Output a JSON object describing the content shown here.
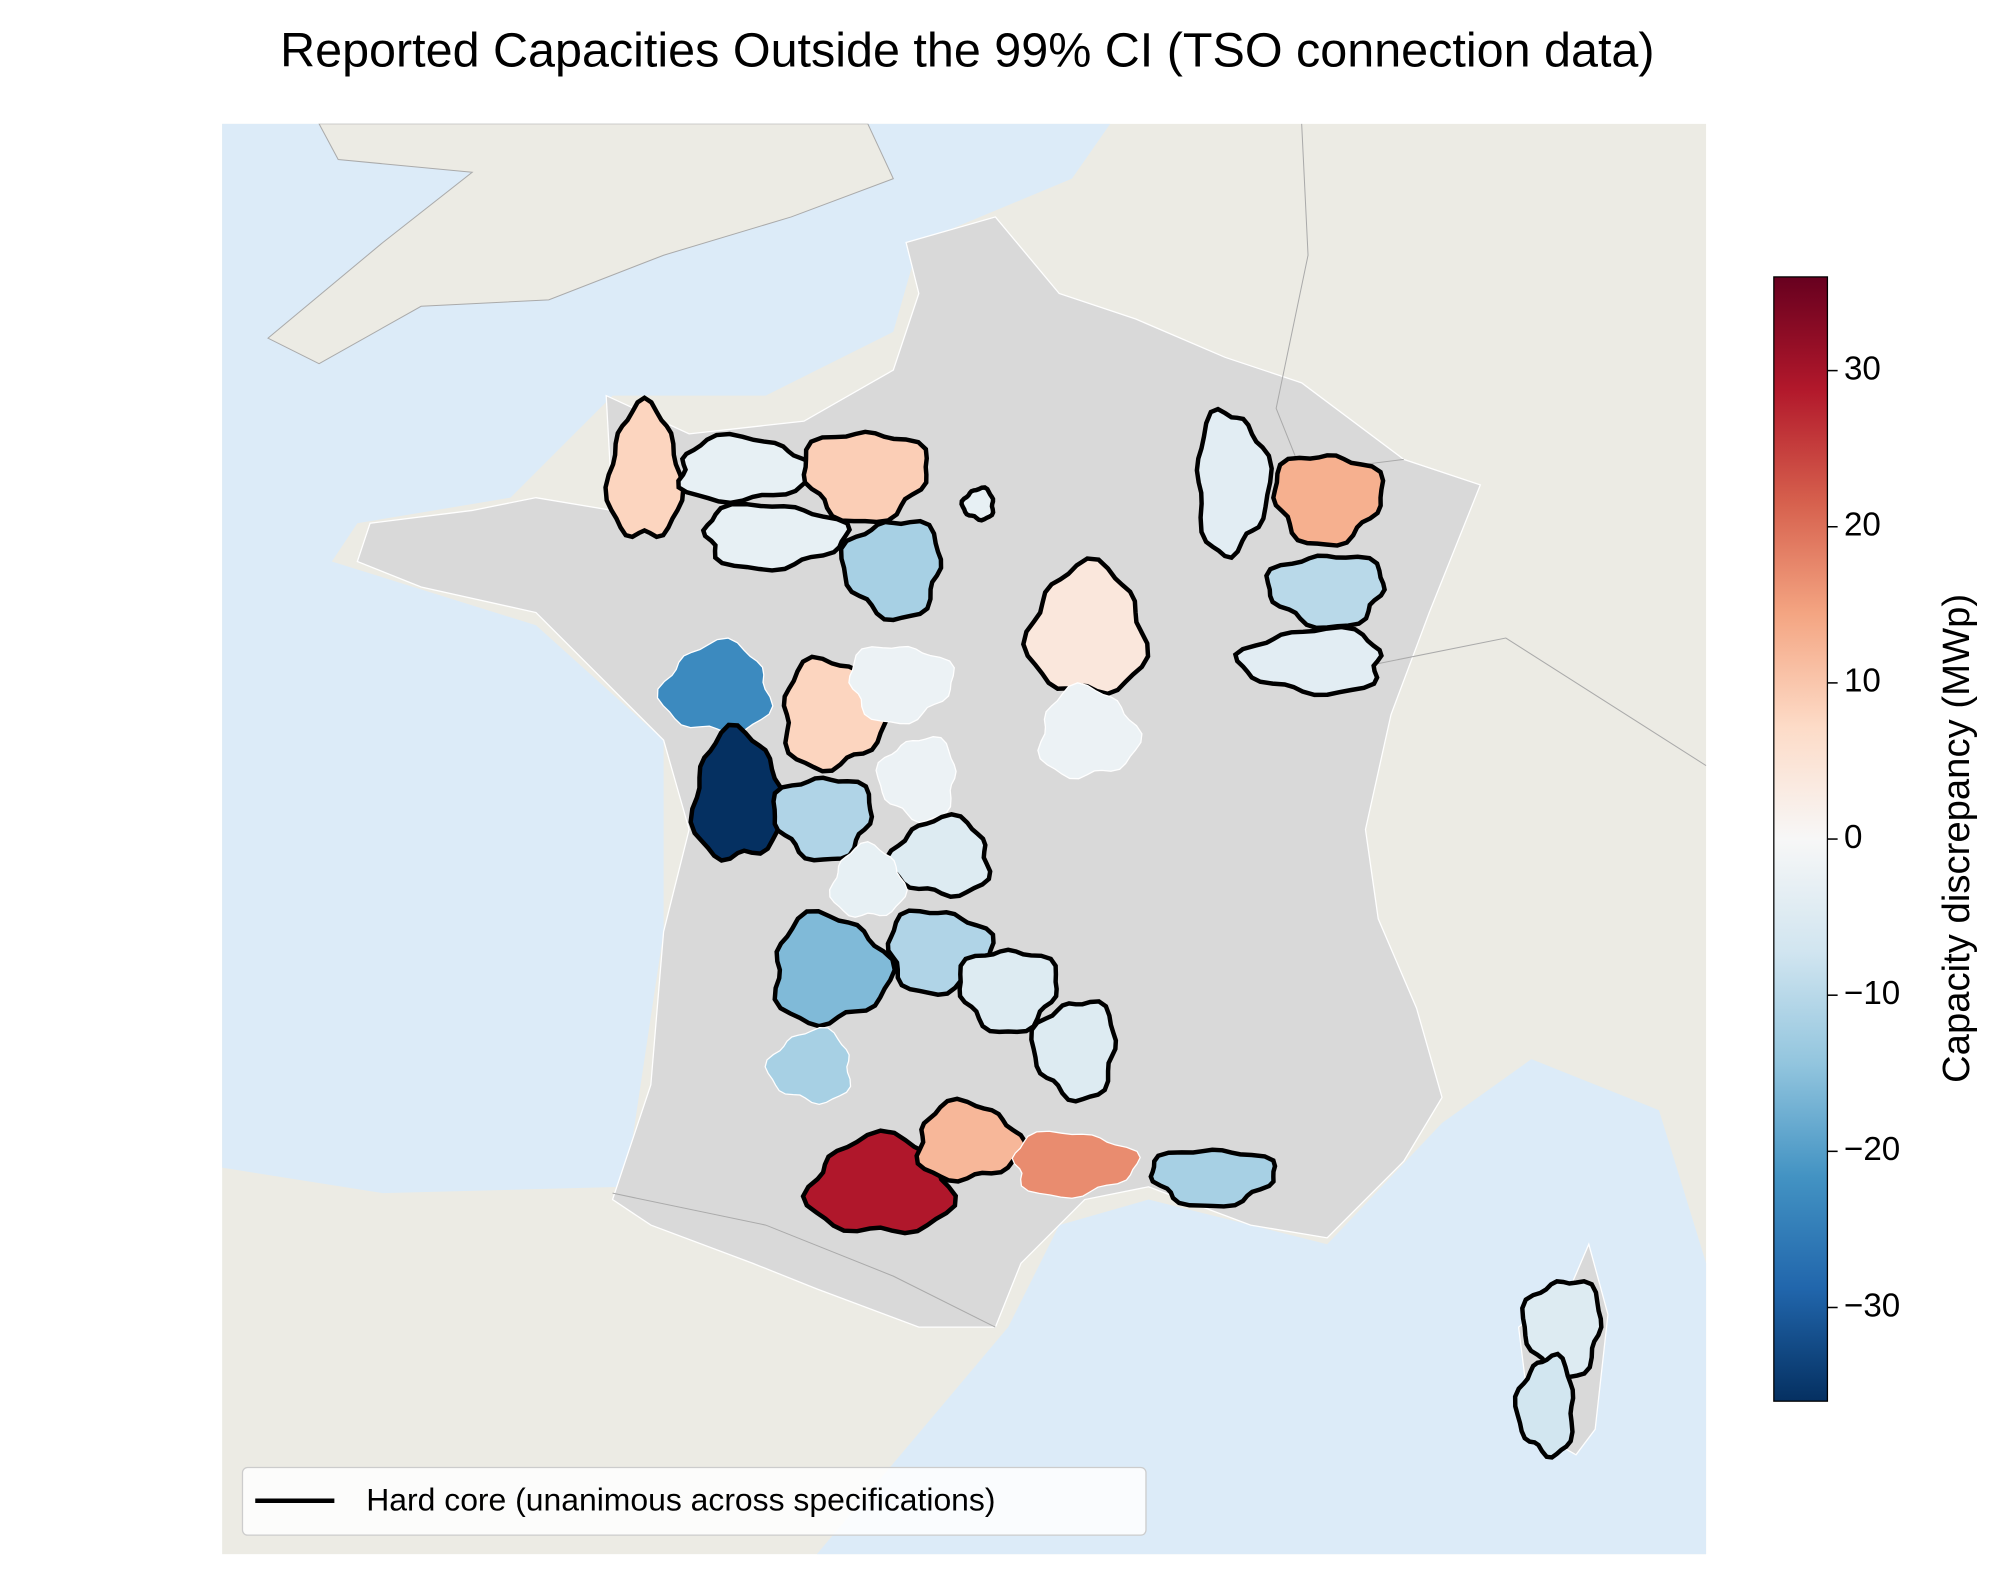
{
  "title": "Reported Capacities Outside the 99% CI (TSO connection data)",
  "colorbar": {
    "label": "Capacity discrepancy (MWp)",
    "clim": [
      -36,
      36
    ],
    "ticks": [
      {
        "value": -30,
        "label": "−30"
      },
      {
        "value": -20,
        "label": "−20"
      },
      {
        "value": -10,
        "label": "−10"
      },
      0,
      10,
      20,
      30
    ]
  },
  "legend": {
    "label": "Hard core (unanimous across specifications)"
  },
  "regions": {
    "values": [
      8,
      -3,
      -3,
      9,
      -12,
      -3,
      4,
      -2,
      -4,
      13,
      -10,
      -4,
      -23,
      -36,
      8,
      -2,
      -11,
      -2,
      -5,
      -3,
      -16,
      -11,
      -5,
      -5,
      -12,
      29,
      12,
      17,
      -12,
      -5,
      -7
    ],
    "hard_core": [
      true,
      true,
      true,
      true,
      true,
      true,
      true,
      false,
      true,
      true,
      true,
      true,
      false,
      true,
      true,
      false,
      true,
      false,
      true,
      false,
      true,
      true,
      true,
      true,
      false,
      true,
      true,
      false,
      true,
      true,
      true
    ]
  }
}
